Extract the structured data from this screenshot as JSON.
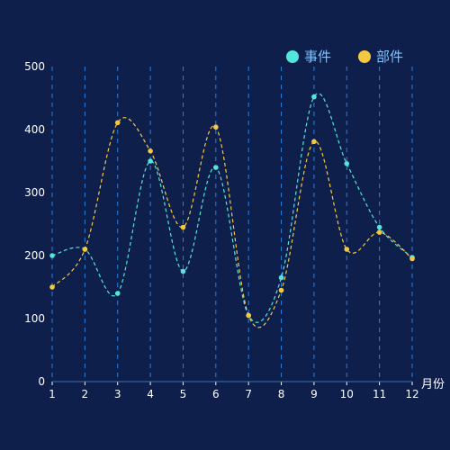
{
  "chart_data": {
    "type": "line",
    "title": "",
    "xlabel": "月份",
    "ylabel": "",
    "ylim": [
      0,
      500
    ],
    "yticks": [
      0,
      100,
      200,
      300,
      400,
      500
    ],
    "categories": [
      "1",
      "2",
      "3",
      "4",
      "5",
      "6",
      "7",
      "8",
      "9",
      "10",
      "11",
      "12"
    ],
    "grid": "vertical dashed lines",
    "legend_position": "top-right",
    "series": [
      {
        "name": "事件",
        "color": "#52e5db",
        "values": [
          200,
          210,
          140,
          350,
          175,
          340,
          105,
          165,
          452,
          346,
          245,
          197
        ]
      },
      {
        "name": "部件",
        "color": "#f5c842",
        "values": [
          150,
          210,
          411,
          366,
          245,
          404,
          105,
          145,
          381,
          210,
          237,
          195
        ]
      }
    ],
    "smooth": true,
    "line_style": "dashed"
  }
}
